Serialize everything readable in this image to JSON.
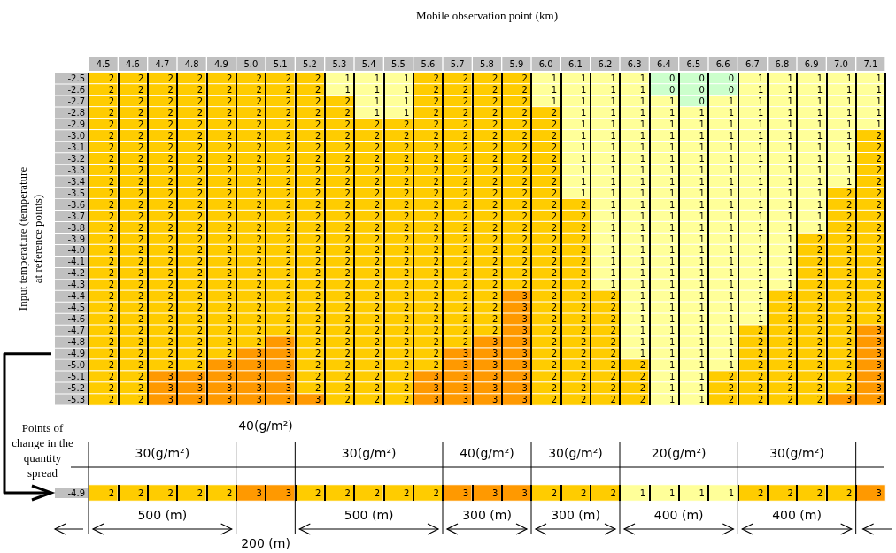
{
  "chart_data": [
    {
      "type": "heatmap",
      "xlabel": "Mobile observation point (km)",
      "ylabel": "Input temperature (temperature at reference points)",
      "data_labels": true,
      "grid": "x",
      "categories": [
        "4.5",
        "4.6",
        "4.7",
        "4.8",
        "4.9",
        "5.0",
        "5.1",
        "5.2",
        "5.3",
        "5.4",
        "5.5",
        "5.6",
        "5.7",
        "5.8",
        "5.9",
        "6.0",
        "6.1",
        "6.2",
        "6.3",
        "6.4",
        "6.5",
        "6.6",
        "6.7",
        "6.8",
        "6.9",
        "7.0",
        "7.1"
      ],
      "y_categories": [
        "-2.5",
        "-2.6",
        "-2.7",
        "-2.8",
        "-2.9",
        "-3.0",
        "-3.1",
        "-3.2",
        "-3.3",
        "-3.4",
        "-3.5",
        "-3.6",
        "-3.7",
        "-3.8",
        "-3.9",
        "-4.0",
        "-4.1",
        "-4.2",
        "-4.3",
        "-4.4",
        "-4.5",
        "-4.6",
        "-4.7",
        "-4.8",
        "-4.9",
        "-5.0",
        "-5.1",
        "-5.2",
        "-5.3"
      ],
      "cells": [
        [
          2,
          2,
          2,
          2,
          2,
          2,
          2,
          2,
          1,
          1,
          1,
          2,
          2,
          2,
          2,
          1,
          1,
          1,
          1,
          0,
          0,
          0,
          1,
          1,
          1,
          1,
          1
        ],
        [
          2,
          2,
          2,
          2,
          2,
          2,
          2,
          2,
          1,
          1,
          1,
          2,
          2,
          2,
          2,
          1,
          1,
          1,
          1,
          0,
          0,
          0,
          1,
          1,
          1,
          1,
          1
        ],
        [
          2,
          2,
          2,
          2,
          2,
          2,
          2,
          2,
          2,
          1,
          1,
          2,
          2,
          2,
          2,
          1,
          1,
          1,
          1,
          1,
          0,
          1,
          1,
          1,
          1,
          1,
          1
        ],
        [
          2,
          2,
          2,
          2,
          2,
          2,
          2,
          2,
          2,
          1,
          1,
          2,
          2,
          2,
          2,
          2,
          1,
          1,
          1,
          1,
          1,
          1,
          1,
          1,
          1,
          1,
          1
        ],
        [
          2,
          2,
          2,
          2,
          2,
          2,
          2,
          2,
          2,
          2,
          2,
          2,
          2,
          2,
          2,
          2,
          1,
          1,
          1,
          1,
          1,
          1,
          1,
          1,
          1,
          1,
          1
        ],
        [
          2,
          2,
          2,
          2,
          2,
          2,
          2,
          2,
          2,
          2,
          2,
          2,
          2,
          2,
          2,
          2,
          1,
          1,
          1,
          1,
          1,
          1,
          1,
          1,
          1,
          1,
          2
        ],
        [
          2,
          2,
          2,
          2,
          2,
          2,
          2,
          2,
          2,
          2,
          2,
          2,
          2,
          2,
          2,
          2,
          1,
          1,
          1,
          1,
          1,
          1,
          1,
          1,
          1,
          1,
          2
        ],
        [
          2,
          2,
          2,
          2,
          2,
          2,
          2,
          2,
          2,
          2,
          2,
          2,
          2,
          2,
          2,
          2,
          1,
          1,
          1,
          1,
          1,
          1,
          1,
          1,
          1,
          1,
          2
        ],
        [
          2,
          2,
          2,
          2,
          2,
          2,
          2,
          2,
          2,
          2,
          2,
          2,
          2,
          2,
          2,
          2,
          1,
          1,
          1,
          1,
          1,
          1,
          1,
          1,
          1,
          1,
          2
        ],
        [
          2,
          2,
          2,
          2,
          2,
          2,
          2,
          2,
          2,
          2,
          2,
          2,
          2,
          2,
          2,
          2,
          1,
          1,
          1,
          1,
          1,
          1,
          1,
          1,
          1,
          1,
          2
        ],
        [
          2,
          2,
          2,
          2,
          2,
          2,
          2,
          2,
          2,
          2,
          2,
          2,
          2,
          2,
          2,
          2,
          1,
          1,
          1,
          1,
          1,
          1,
          1,
          1,
          1,
          2,
          2
        ],
        [
          2,
          2,
          2,
          2,
          2,
          2,
          2,
          2,
          2,
          2,
          2,
          2,
          2,
          2,
          2,
          2,
          2,
          1,
          1,
          1,
          1,
          1,
          1,
          1,
          1,
          2,
          2
        ],
        [
          2,
          2,
          2,
          2,
          2,
          2,
          2,
          2,
          2,
          2,
          2,
          2,
          2,
          2,
          2,
          2,
          2,
          1,
          1,
          1,
          1,
          1,
          1,
          1,
          1,
          2,
          2
        ],
        [
          2,
          2,
          2,
          2,
          2,
          2,
          2,
          2,
          2,
          2,
          2,
          2,
          2,
          2,
          2,
          2,
          2,
          1,
          1,
          1,
          1,
          1,
          1,
          1,
          1,
          2,
          2
        ],
        [
          2,
          2,
          2,
          2,
          2,
          2,
          2,
          2,
          2,
          2,
          2,
          2,
          2,
          2,
          2,
          2,
          2,
          1,
          1,
          1,
          1,
          1,
          1,
          1,
          2,
          2,
          2
        ],
        [
          2,
          2,
          2,
          2,
          2,
          2,
          2,
          2,
          2,
          2,
          2,
          2,
          2,
          2,
          2,
          2,
          2,
          1,
          1,
          1,
          1,
          1,
          1,
          1,
          2,
          2,
          2
        ],
        [
          2,
          2,
          2,
          2,
          2,
          2,
          2,
          2,
          2,
          2,
          2,
          2,
          2,
          2,
          2,
          2,
          2,
          1,
          1,
          1,
          1,
          1,
          1,
          1,
          2,
          2,
          2
        ],
        [
          2,
          2,
          2,
          2,
          2,
          2,
          2,
          2,
          2,
          2,
          2,
          2,
          2,
          2,
          2,
          2,
          2,
          1,
          1,
          1,
          1,
          1,
          1,
          1,
          2,
          2,
          2
        ],
        [
          2,
          2,
          2,
          2,
          2,
          2,
          2,
          2,
          2,
          2,
          2,
          2,
          2,
          2,
          2,
          2,
          2,
          1,
          1,
          1,
          1,
          1,
          1,
          1,
          2,
          2,
          2
        ],
        [
          2,
          2,
          2,
          2,
          2,
          2,
          2,
          2,
          2,
          2,
          2,
          2,
          2,
          2,
          3,
          2,
          2,
          2,
          1,
          1,
          1,
          1,
          1,
          2,
          2,
          2,
          2
        ],
        [
          2,
          2,
          2,
          2,
          2,
          2,
          2,
          2,
          2,
          2,
          2,
          2,
          2,
          2,
          3,
          2,
          2,
          2,
          1,
          1,
          1,
          1,
          1,
          2,
          2,
          2,
          2
        ],
        [
          2,
          2,
          2,
          2,
          2,
          2,
          2,
          2,
          2,
          2,
          2,
          2,
          2,
          2,
          3,
          2,
          2,
          2,
          1,
          1,
          1,
          1,
          1,
          2,
          2,
          2,
          2
        ],
        [
          2,
          2,
          2,
          2,
          2,
          2,
          2,
          2,
          2,
          2,
          2,
          2,
          2,
          2,
          3,
          2,
          2,
          2,
          1,
          1,
          1,
          1,
          2,
          2,
          2,
          2,
          3
        ],
        [
          2,
          2,
          2,
          2,
          2,
          2,
          3,
          2,
          2,
          2,
          2,
          2,
          2,
          3,
          3,
          2,
          2,
          2,
          1,
          1,
          1,
          1,
          2,
          2,
          2,
          2,
          3
        ],
        [
          2,
          2,
          2,
          2,
          2,
          3,
          3,
          2,
          2,
          2,
          2,
          2,
          3,
          3,
          3,
          2,
          2,
          2,
          1,
          1,
          1,
          1,
          2,
          2,
          2,
          2,
          3
        ],
        [
          2,
          2,
          2,
          2,
          3,
          3,
          3,
          2,
          2,
          2,
          2,
          2,
          3,
          3,
          3,
          2,
          2,
          2,
          2,
          1,
          1,
          1,
          2,
          2,
          2,
          2,
          3
        ],
        [
          2,
          2,
          3,
          3,
          3,
          3,
          3,
          2,
          2,
          2,
          2,
          3,
          3,
          3,
          3,
          2,
          2,
          2,
          2,
          1,
          1,
          2,
          2,
          2,
          2,
          2,
          3
        ],
        [
          2,
          2,
          3,
          3,
          3,
          3,
          3,
          2,
          2,
          2,
          2,
          3,
          3,
          3,
          3,
          2,
          2,
          2,
          2,
          1,
          1,
          2,
          2,
          2,
          2,
          2,
          3
        ],
        [
          2,
          2,
          3,
          3,
          3,
          3,
          3,
          3,
          2,
          2,
          2,
          3,
          3,
          3,
          3,
          2,
          2,
          2,
          2,
          1,
          1,
          2,
          2,
          2,
          2,
          3,
          3
        ]
      ]
    },
    {
      "type": "heatmap",
      "data_labels": true,
      "grid": "x",
      "tick_labels": "y",
      "categories": [
        null,
        null,
        null,
        null,
        null,
        null,
        null,
        null,
        null,
        null,
        null,
        null,
        null,
        null,
        null,
        null,
        null,
        null,
        null,
        null,
        null,
        null,
        null,
        null,
        null,
        null,
        null
      ],
      "y_categories": [
        "-4.9"
      ],
      "cells": [
        [
          2,
          2,
          2,
          2,
          2,
          3,
          3,
          2,
          2,
          2,
          2,
          2,
          3,
          3,
          3,
          2,
          2,
          2,
          1,
          1,
          1,
          1,
          2,
          2,
          2,
          2,
          3
        ]
      ],
      "annotations": [
        "Points of change in the quantity spread",
        "30(g/m²)",
        "40(g/m²)",
        "30(g/m²)",
        "40(g/m²)",
        "30(g/m²)",
        "20(g/m²)",
        "30(g/m²)",
        "500 (m)",
        "200 (m)",
        "500 (m)",
        "300 (m)",
        "300 (m)",
        "400 (m)",
        "400 (m)"
      ]
    }
  ]
}
